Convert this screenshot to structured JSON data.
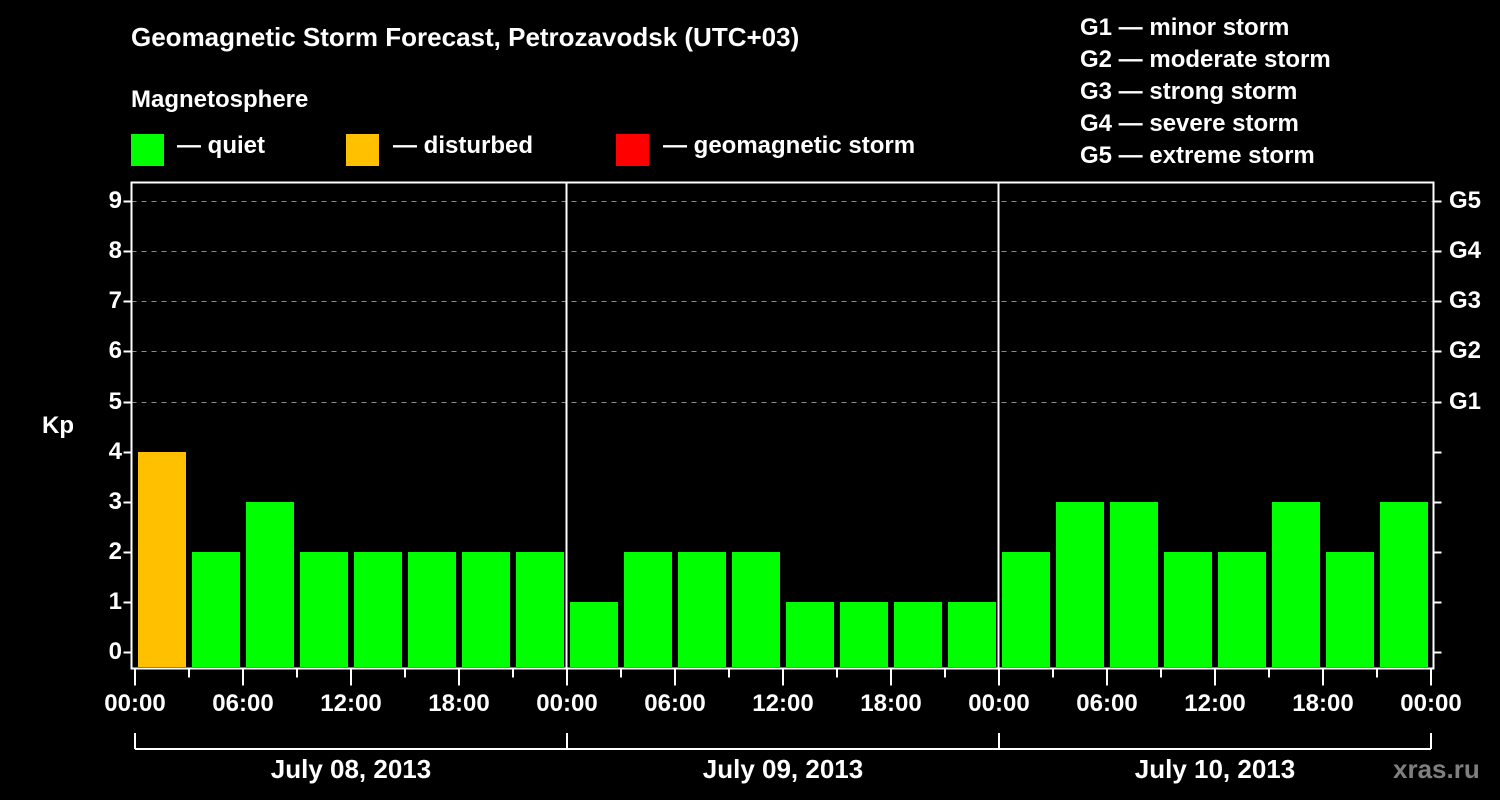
{
  "header": {
    "title": "Geomagnetic Storm Forecast, Petrozavodsk (UTC+03)",
    "subtitle": "Magnetosphere"
  },
  "legend": [
    {
      "label": "— quiet",
      "color": "#00ff00"
    },
    {
      "label": "— disturbed",
      "color": "#ffc000"
    },
    {
      "label": "— geomagnetic storm",
      "color": "#ff0000"
    }
  ],
  "storm_scale": [
    "G1 — minor storm",
    "G2 — moderate storm",
    "G3 — strong storm",
    "G4 — severe storm",
    "G5 — extreme storm"
  ],
  "watermark": "xras.ru",
  "chart_data": {
    "type": "bar",
    "title": "Geomagnetic Storm Forecast, Petrozavodsk (UTC+03)",
    "ylabel": "Kp",
    "xlabel": "",
    "ylim": [
      0,
      9
    ],
    "yticks": [
      0,
      1,
      2,
      3,
      4,
      5,
      6,
      7,
      8,
      9
    ],
    "y2ticks": [
      {
        "kp": 5,
        "label": "G1"
      },
      {
        "kp": 6,
        "label": "G2"
      },
      {
        "kp": 7,
        "label": "G3"
      },
      {
        "kp": 8,
        "label": "G4"
      },
      {
        "kp": 9,
        "label": "G5"
      }
    ],
    "grid": "horizontal dashed at Kp 5-9",
    "xtick_labels": [
      "00:00",
      "06:00",
      "12:00",
      "18:00",
      "00:00",
      "06:00",
      "12:00",
      "18:00",
      "00:00",
      "06:00",
      "12:00",
      "18:00",
      "00:00"
    ],
    "days": [
      "July 08, 2013",
      "July 09, 2013",
      "July 10, 2013"
    ],
    "categories": [
      "Jul 08 00-03",
      "Jul 08 03-06",
      "Jul 08 06-09",
      "Jul 08 09-12",
      "Jul 08 12-15",
      "Jul 08 15-18",
      "Jul 08 18-21",
      "Jul 08 21-24",
      "Jul 09 00-03",
      "Jul 09 03-06",
      "Jul 09 06-09",
      "Jul 09 09-12",
      "Jul 09 12-15",
      "Jul 09 15-18",
      "Jul 09 18-21",
      "Jul 09 21-24",
      "Jul 10 00-03",
      "Jul 10 03-06",
      "Jul 10 06-09",
      "Jul 10 09-12",
      "Jul 10 12-15",
      "Jul 10 15-18",
      "Jul 10 18-21",
      "Jul 10 21-24"
    ],
    "values": [
      4,
      2,
      3,
      2,
      2,
      2,
      2,
      2,
      1,
      2,
      2,
      2,
      1,
      1,
      1,
      1,
      2,
      3,
      3,
      2,
      2,
      3,
      2,
      3
    ],
    "status": [
      "disturbed",
      "quiet",
      "quiet",
      "quiet",
      "quiet",
      "quiet",
      "quiet",
      "quiet",
      "quiet",
      "quiet",
      "quiet",
      "quiet",
      "quiet",
      "quiet",
      "quiet",
      "quiet",
      "quiet",
      "quiet",
      "quiet",
      "quiet",
      "quiet",
      "quiet",
      "quiet",
      "quiet"
    ],
    "colors": {
      "quiet": "#00ff00",
      "disturbed": "#ffc000",
      "storm": "#ff0000"
    }
  }
}
